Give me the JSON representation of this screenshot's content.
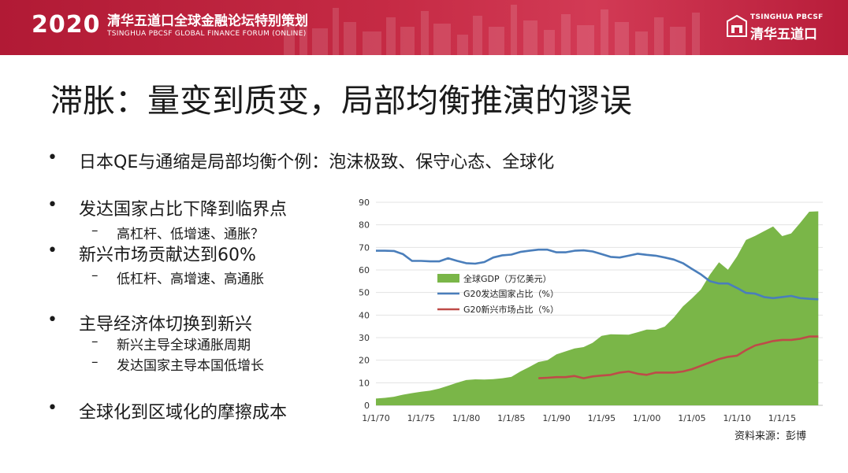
{
  "banner": {
    "year": "2020",
    "title": "清华五道口全球金融论坛特别策划",
    "subtitle": "TSINGHUA PBCSF GLOBAL FINANCE FORUM (ONLINE)",
    "brand_en": "TSINGHUA PBCSF",
    "brand_cn": "清华五道口",
    "color": "#c0223f"
  },
  "slide": {
    "title": "滞胀：量变到质变，局部均衡推演的谬误",
    "bullets": [
      {
        "text": "日本QE与通缩是局部均衡个例：泡沫极致、保守心态、全球化",
        "subs": []
      },
      {
        "text": "发达国家占比下降到临界点",
        "subs": [
          "高杠杆、低增速、通胀？"
        ]
      },
      {
        "text": "新兴市场贡献达到60%",
        "subs": [
          "低杠杆、高增速、高通胀"
        ]
      },
      {
        "text": "主导经济体切换到新兴",
        "subs": [
          "新兴主导全球通胀周期",
          "发达国家主导本国低增长"
        ]
      },
      {
        "text": "全球化到区域化的摩擦成本",
        "subs": []
      }
    ],
    "bullet_symbol": "•",
    "dash_symbol": "–",
    "source": "资料来源：彭博"
  },
  "chart_data": {
    "type": "area",
    "x": [
      1970,
      1971,
      1972,
      1973,
      1974,
      1975,
      1976,
      1977,
      1978,
      1979,
      1980,
      1981,
      1982,
      1983,
      1984,
      1985,
      1986,
      1987,
      1988,
      1989,
      1990,
      1991,
      1992,
      1993,
      1994,
      1995,
      1996,
      1997,
      1998,
      1999,
      2000,
      2001,
      2002,
      2003,
      2004,
      2005,
      2006,
      2007,
      2008,
      2009,
      2010,
      2011,
      2012,
      2013,
      2014,
      2015,
      2016,
      2017,
      2018,
      2019
    ],
    "x_tick_labels": [
      "1/1/70",
      "1/1/75",
      "1/1/80",
      "1/1/85",
      "1/1/90",
      "1/1/95",
      "1/1/00",
      "1/1/05",
      "1/1/10",
      "1/1/15"
    ],
    "x_tick_years": [
      1970,
      1975,
      1980,
      1985,
      1990,
      1995,
      2000,
      2005,
      2010,
      2015
    ],
    "ylim": [
      0,
      90
    ],
    "yticks": [
      0,
      10,
      20,
      30,
      40,
      50,
      60,
      70,
      80,
      90
    ],
    "legend_position": "middle-left",
    "series": [
      {
        "name": "全球GDP（万亿美元）",
        "kind": "area",
        "color": "#7ab648",
        "values": [
          3,
          3.3,
          3.8,
          4.7,
          5.4,
          6,
          6.5,
          7.4,
          8.7,
          10,
          11.2,
          11.5,
          11.4,
          11.6,
          12,
          12.6,
          15,
          17,
          19.2,
          20,
          22.6,
          23.9,
          25.2,
          25.8,
          27.7,
          30.8,
          31.5,
          31.4,
          31.3,
          32.4,
          33.6,
          33.5,
          34.9,
          38.9,
          43.8,
          47.4,
          51.4,
          57.9,
          63.4,
          60.1,
          66,
          73.3,
          75.1,
          77.2,
          79.3,
          75,
          76.2,
          80.9,
          85.8,
          86
        ]
      },
      {
        "name": "G20发达国家占比（%）",
        "kind": "line",
        "color": "#4a7ebb",
        "values": [
          68.5,
          68.5,
          68.4,
          67,
          64,
          64,
          63.8,
          63.8,
          65.2,
          64,
          63,
          62.8,
          63.5,
          65.5,
          66.5,
          66.8,
          68,
          68.5,
          69,
          69,
          67.8,
          67.8,
          68.5,
          68.7,
          68.2,
          67,
          65.8,
          65.5,
          66.3,
          67.2,
          66.7,
          66.3,
          65.5,
          64.6,
          63,
          60.5,
          58,
          55,
          54,
          54,
          52,
          49.8,
          49.5,
          48,
          47.5,
          48,
          48.5,
          47.5,
          47.2,
          47
        ]
      },
      {
        "name": "G20新兴市场占比（%）",
        "kind": "line",
        "color": "#be4b48",
        "values": [
          null,
          null,
          null,
          null,
          null,
          null,
          null,
          null,
          null,
          null,
          null,
          null,
          null,
          null,
          null,
          null,
          null,
          null,
          12,
          12.2,
          12.5,
          12.5,
          13,
          12,
          12.8,
          13.2,
          13.5,
          14.5,
          15,
          14,
          13.5,
          14.5,
          14.5,
          14.5,
          15,
          16,
          17.5,
          19,
          20.5,
          21.5,
          22,
          24.5,
          26.5,
          27.5,
          28.5,
          29,
          29,
          29.5,
          30.5,
          30.5
        ]
      }
    ]
  }
}
